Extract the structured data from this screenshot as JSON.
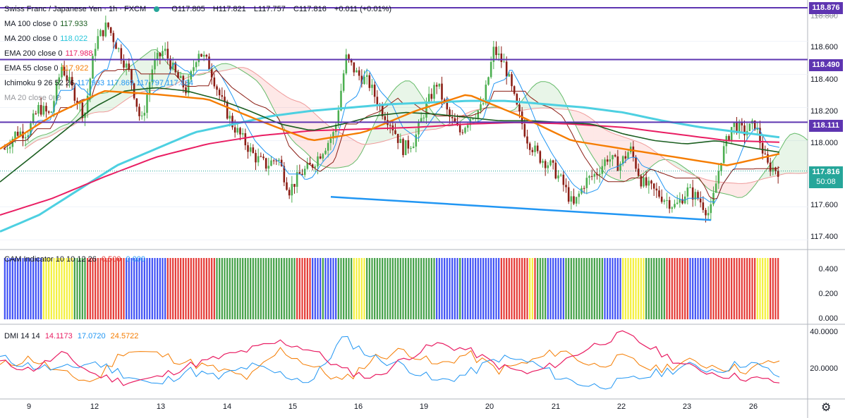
{
  "header": {
    "symbol": "Swiss Franc / Japanese Yen · 1h · FXCM",
    "open": "O117.805",
    "high": "H117.821",
    "low": "L117.757",
    "close": "C117.816",
    "change": "+0.011 (+0.01%)"
  },
  "indicators": [
    {
      "label": "MA 100 close 0",
      "value": "117.933",
      "color": "#1b5e20"
    },
    {
      "label": "MA 200 close 0",
      "value": "118.022",
      "color": "#26c6da"
    },
    {
      "label": "EMA 200 close 0",
      "value": "117.988",
      "color": "#e91e63"
    },
    {
      "label": "EMA 55 close 0",
      "value": "117.922",
      "color": "#f57c00"
    },
    {
      "label": "Ichimoku 9 26 52 26",
      "value": "117.933  117.869  117.797  117.834",
      "color": "#2196f3"
    },
    {
      "label": "MA 20 close 0",
      "value": "",
      "color": "#131722"
    }
  ],
  "price_axis": {
    "currency": "JPY",
    "ticks": [
      "118.600",
      "118.400",
      "118.200",
      "118.000",
      "117.800",
      "117.600",
      "117.400"
    ],
    "top_partial": "118.800"
  },
  "horizontal_levels": [
    {
      "value": "118.490",
      "color": "#5e35b1"
    },
    {
      "value": "118.111",
      "color": "#5e35b1"
    },
    {
      "value": "118.876",
      "color": "#5e35b1"
    }
  ],
  "last_price": {
    "value": "117.816",
    "countdown": "50:08",
    "color": "#26a69a"
  },
  "cam_pane": {
    "label": "CAM Indicator 10 10 12 26",
    "v1": "0.500",
    "v2": "0.000",
    "ticks": [
      "0.400",
      "0.200",
      "0.000"
    ]
  },
  "dmi_pane": {
    "label": "DMI 14 14",
    "plus": "14.1173",
    "minus": "17.0720",
    "adx": "24.5722",
    "ticks": [
      "40.0000",
      "20.0000"
    ]
  },
  "time_axis": [
    "9",
    "12",
    "13",
    "14",
    "15",
    "16",
    "19",
    "20",
    "21",
    "22",
    "23",
    "26"
  ],
  "chart_data": {
    "type": "candlestick",
    "ylim": [
      117.35,
      118.85
    ],
    "levels": [
      118.876,
      118.49,
      118.111
    ],
    "trendline": {
      "from": [
        117.66,
        "15"
      ],
      "to": [
        117.52,
        "23"
      ]
    },
    "close_path": [
      117.95,
      118.05,
      118.05,
      118.2,
      118.15,
      118.45,
      118.3,
      118.15,
      118.6,
      118.7,
      118.55,
      118.4,
      118.1,
      118.45,
      118.55,
      118.4,
      118.3,
      118.55,
      118.45,
      118.25,
      118.1,
      118.0,
      117.9,
      117.85,
      117.9,
      117.7,
      117.8,
      117.85,
      117.95,
      118.05,
      118.5,
      118.4,
      118.35,
      118.2,
      118.1,
      117.95,
      118.0,
      118.2,
      118.35,
      118.15,
      118.05,
      118.15,
      118.2,
      118.55,
      118.45,
      118.2,
      118.0,
      117.9,
      117.85,
      117.75,
      117.6,
      117.75,
      117.8,
      117.9,
      117.85,
      117.95,
      117.75,
      117.7,
      117.65,
      117.6,
      117.7,
      117.65,
      117.55,
      117.9,
      118.1,
      118.05,
      118.1,
      117.85,
      117.82
    ],
    "ma100_path": [
      117.75,
      117.9,
      118.05,
      118.2,
      118.3,
      118.32,
      118.3,
      118.25,
      118.18,
      118.1,
      118.06,
      118.1,
      118.15,
      118.17,
      118.16,
      118.14,
      118.12,
      118.12,
      118.11,
      118.1,
      118.04,
      118.0,
      117.98,
      118.0,
      117.96,
      117.93
    ],
    "ma200_path": [
      117.45,
      117.55,
      117.7,
      117.85,
      117.95,
      118.05,
      118.1,
      118.15,
      118.18,
      118.2,
      118.22,
      118.23,
      118.24,
      118.24,
      118.22,
      118.2,
      118.17,
      118.12,
      118.08,
      118.05,
      118.02
    ],
    "ema200_path": [
      117.55,
      117.65,
      117.78,
      117.9,
      117.98,
      118.03,
      118.06,
      118.07,
      118.08,
      118.1,
      118.11,
      118.1,
      118.08,
      118.04,
      118.0,
      117.99
    ],
    "ema55_path": [
      117.95,
      118.15,
      118.3,
      118.28,
      118.25,
      118.12,
      118.0,
      118.05,
      118.18,
      118.28,
      118.15,
      118.0,
      117.95,
      117.9,
      117.85,
      117.92
    ],
    "cam_colors": [
      "blue",
      "red",
      "green",
      "yellow"
    ],
    "dmi": {
      "plus_path": [
        24,
        20,
        28,
        18,
        14,
        16,
        22,
        26,
        30,
        34,
        30,
        20,
        16,
        26,
        33,
        30,
        22,
        18,
        24,
        32,
        38,
        30,
        22,
        18,
        16,
        14
      ],
      "minus_path": [
        26,
        22,
        20,
        24,
        18,
        12,
        20,
        16,
        22,
        18,
        14,
        36,
        26,
        22,
        14,
        18,
        26,
        24,
        16,
        12,
        14,
        18,
        22,
        20,
        24,
        17
      ],
      "adx_path": [
        22,
        26,
        18,
        14,
        30,
        28,
        24,
        20,
        16,
        30,
        22,
        14,
        26,
        30,
        22,
        28,
        20,
        24,
        30,
        22,
        26,
        20,
        24,
        22,
        20,
        25
      ]
    }
  }
}
